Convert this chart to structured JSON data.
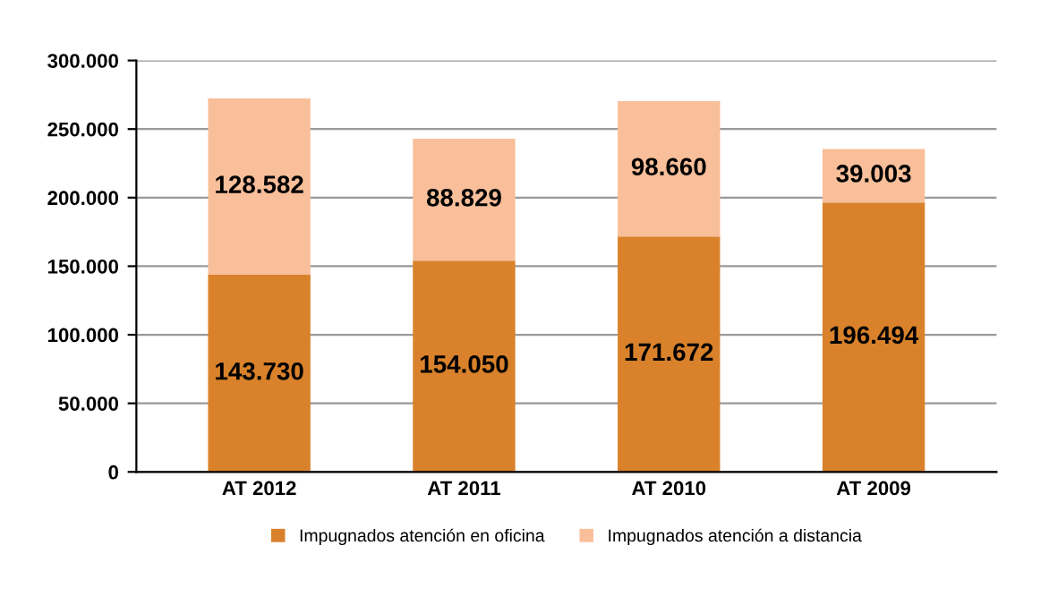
{
  "chart_data": {
    "type": "bar",
    "stacked": true,
    "categories": [
      "AT 2012",
      "AT 2011",
      "AT 2010",
      "AT 2009"
    ],
    "series": [
      {
        "name": "Impugnados atención en oficina",
        "color": "#d9822b",
        "values": [
          143730,
          154050,
          171672,
          196494
        ],
        "value_labels": [
          "143.730",
          "154.050",
          "171.672",
          "196.494"
        ]
      },
      {
        "name": "Impugnados atención a distancia",
        "color": "#f9bf9a",
        "values": [
          128582,
          88829,
          98660,
          39003
        ],
        "value_labels": [
          "128.582",
          "88.829",
          "98.660",
          "39.003"
        ]
      }
    ],
    "ylim": [
      0,
      300000
    ],
    "yticks": [
      0,
      {
        "value": 50000,
        "label": "50.000"
      },
      {
        "value": 100000,
        "label": "100.000"
      },
      {
        "value": 150000,
        "label": "150.000"
      },
      {
        "value": 200000,
        "label": "200.000"
      },
      {
        "value": 250000,
        "label": "250.000"
      },
      {
        "value": 300000,
        "label": "300.000"
      }
    ],
    "grid": "y",
    "legend": "bottom"
  }
}
